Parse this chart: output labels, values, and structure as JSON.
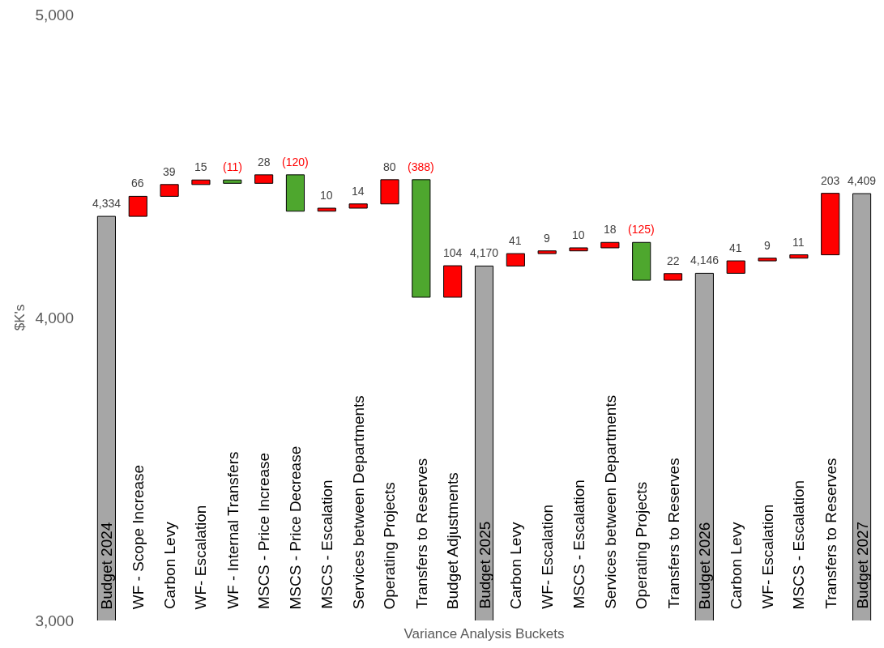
{
  "chart_data": {
    "type": "bar",
    "xlabel": "Variance Analysis Buckets",
    "ylabel": "$K's",
    "categories": [
      "Budget 2024",
      "WF - Scope Increase",
      "Carbon Levy",
      "WF- Escalation",
      "WF - Internal Transfers",
      "MSCS - Price Increase",
      "MSCS - Price Decrease",
      "MSCS - Escalation",
      "Services between Departments",
      "Operating Projects",
      "Transfers to Reserves",
      "Budget Adjustments",
      "Budget 2025",
      "Carbon Levy",
      "WF- Escalation",
      "MSCS - Escalation",
      "Services between Departments",
      "Operating Projects",
      "Transfers to Reserves",
      "Budget 2026",
      "Carbon Levy",
      "WF- Escalation",
      "MSCS - Escalation",
      "Transfers to Reserves",
      "Budget 2027"
    ],
    "values": [
      4334,
      66,
      39,
      15,
      -11,
      28,
      -120,
      10,
      14,
      80,
      -388,
      104,
      4170,
      41,
      9,
      10,
      18,
      -125,
      22,
      4146,
      41,
      9,
      11,
      203,
      4409
    ],
    "base": [
      null,
      4334,
      4400,
      4439,
      4454,
      4443,
      4471,
      4351,
      4361,
      4375,
      4455,
      4067,
      null,
      4170,
      4211,
      4220,
      4230,
      4248,
      4123,
      null,
      4146,
      4187,
      4196,
      4207,
      null
    ],
    "colors": [
      "#a6a6a6",
      "#ff0000",
      "#ff0000",
      "#ff0000",
      "#4ea72e",
      "#ff0000",
      "#4ea72e",
      "#ff0000",
      "#ff0000",
      "#ff0000",
      "#4ea72e",
      "#ff0000",
      "#a6a6a6",
      "#ff0000",
      "#ff0000",
      "#ff0000",
      "#ff0000",
      "#4ea72e",
      "#ff0000",
      "#a6a6a6",
      "#ff0000",
      "#ff0000",
      "#ff0000",
      "#ff0000",
      "#a6a6a6"
    ],
    "value_labels": [
      "4,334",
      "66",
      "39",
      "15",
      "(11)",
      "28",
      "(120)",
      "10",
      "14",
      "80",
      "(388)",
      "104",
      "4,170",
      "41",
      "9",
      "10",
      "18",
      "(125)",
      "22",
      "4,146",
      "41",
      "9",
      "11",
      "203",
      "4,409"
    ],
    "ylim": [
      3000,
      5000
    ],
    "yticks": [
      {
        "value": 3000,
        "label": "3,000"
      },
      {
        "value": 4000,
        "label": "4,000"
      },
      {
        "value": 5000,
        "label": "5,000"
      }
    ]
  }
}
